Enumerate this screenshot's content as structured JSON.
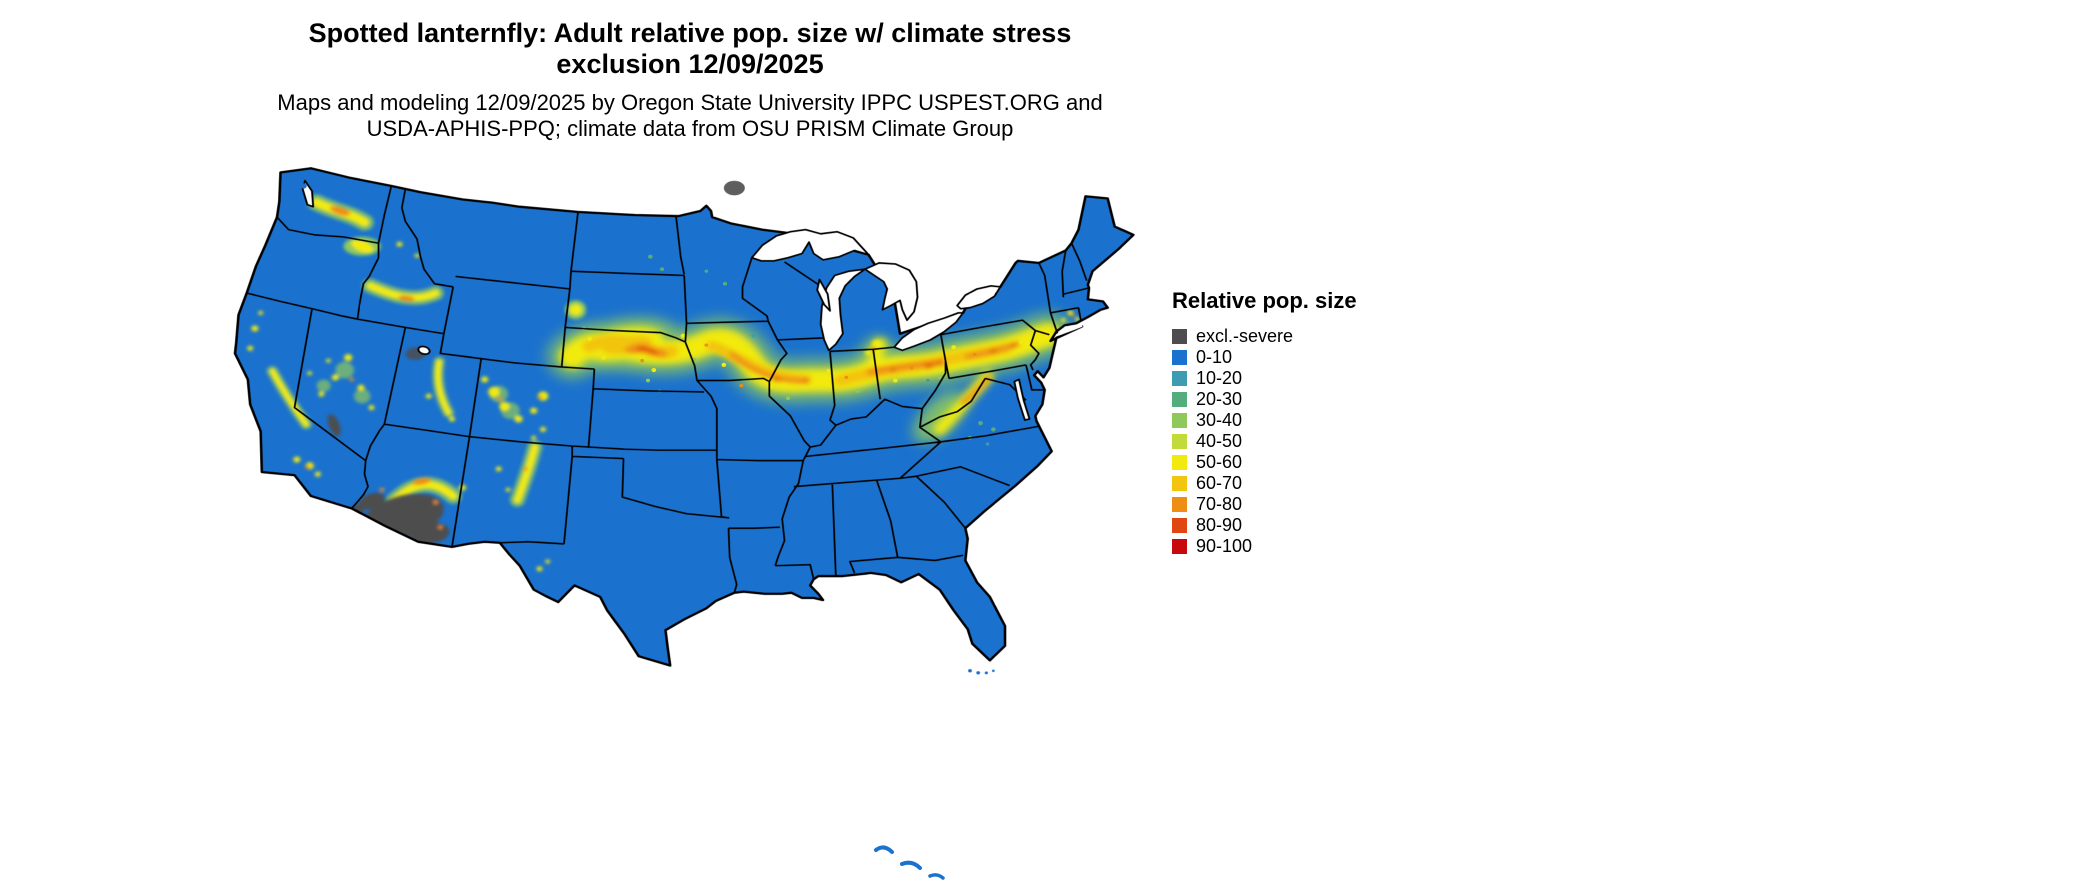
{
  "title": {
    "line1": "Spotted lanternfly: Adult relative pop. size w/ climate stress",
    "line2": "exclusion 12/09/2025"
  },
  "subtitle": {
    "line1": "Maps and modeling 12/09/2025 by Oregon State University IPPC USPEST.ORG and",
    "line2": "USDA-APHIS-PPQ; climate data from OSU PRISM Climate Group"
  },
  "legend": {
    "title": "Relative pop. size",
    "items": [
      {
        "label": "excl.-severe",
        "color": "#4D4D4D"
      },
      {
        "label": "0-10",
        "color": "#1B72CE"
      },
      {
        "label": "10-20",
        "color": "#3D9CB0"
      },
      {
        "label": "20-30",
        "color": "#55AC7C"
      },
      {
        "label": "30-40",
        "color": "#8FC95C"
      },
      {
        "label": "40-50",
        "color": "#C2DB3A"
      },
      {
        "label": "50-60",
        "color": "#F2EA0F"
      },
      {
        "label": "60-70",
        "color": "#F2C50F"
      },
      {
        "label": "70-80",
        "color": "#EE8E12"
      },
      {
        "label": "80-90",
        "color": "#E0460F"
      },
      {
        "label": "90-100",
        "color": "#C9080E"
      }
    ]
  },
  "map": {
    "region": "Contiguous United States",
    "base_level": "0-10 (blue) across most of the country",
    "border_color": "#000000",
    "water_color": "#FFFFFF",
    "high_band": "Continuous 40-100 band from western Nebraska / southern South Dakota across Iowa, northern Missouri, Illinois, Indiana, Ohio and Pennsylvania to New Jersey / New York City",
    "excluded_severe": "Desert lowlands of southwestern Arizona and southeastern California shown as excl.-severe (dark gray)",
    "scattered_moderate": [
      "Central Washington / Columbia Basin",
      "Northeastern Oregon",
      "Snake River Plain, Idaho",
      "Nevada and western Utah ranges",
      "Sierra Nevada foothills and California coast ranges",
      "Southern California mountains",
      "Wasatch Front, Utah",
      "Western Colorado and Front Range",
      "Central Arizona Mogollon Rim arc",
      "New Mexico mountain chains",
      "Black Hills, South Dakota",
      "Southern Michigan",
      "Appalachians of West Virginia / Maryland / Virginia",
      "Southern New England and Long Island"
    ]
  }
}
